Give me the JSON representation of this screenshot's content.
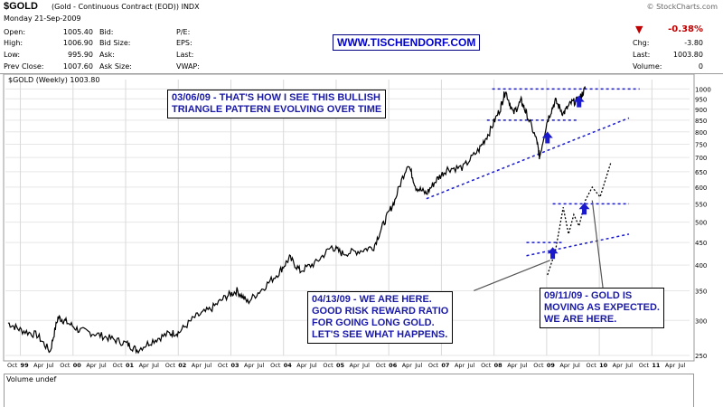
{
  "header": {
    "symbol": "$GOLD",
    "description": "(Gold - Continuous Contract (EOD)) INDX",
    "credit": "© StockCharts.com",
    "date": "Monday  21-Sep-2009",
    "url": "WWW.TISCHENDORF.COM",
    "quote": [
      {
        "label": "Open:",
        "value": "1005.40"
      },
      {
        "label": "High:",
        "value": "1006.90"
      },
      {
        "label": "Low:",
        "value": "995.90"
      },
      {
        "label": "Prev Close:",
        "value": "1007.60"
      }
    ],
    "quote2": [
      "Bid:",
      "Bid Size:",
      "Ask:",
      "Ask Size:"
    ],
    "quote3": [
      "P/E:",
      "EPS:",
      "Last:",
      "VWAP:"
    ],
    "change": {
      "pct": "-0.38%",
      "chg_label": "Chg:",
      "chg": "-3.80",
      "last_label": "Last:",
      "last": "1003.80",
      "vol_label": "Volume:",
      "vol": "0"
    },
    "arrow": "▼",
    "down_color": "#c00000"
  },
  "legend": "$GOLD (Weekly) 1003.80",
  "volume_label": "Volume undef",
  "annotations": [
    {
      "lines": [
        "03/06/09 - THAT'S HOW I SEE THIS BULLISH",
        "TRIANGLE PATTERN EVOLVING OVER TIME"
      ]
    },
    {
      "lines": [
        "04/13/09 - WE ARE HERE.",
        "GOOD RISK REWARD RATIO",
        "FOR GOING LONG GOLD.",
        "LET'S SEE WHAT HAPPENS."
      ]
    },
    {
      "lines": [
        "09/11/09 - GOLD IS",
        "MOVING AS EXPECTED.",
        "WE ARE HERE."
      ]
    }
  ],
  "chart_data": {
    "type": "line",
    "title": "$GOLD (Weekly) 1003.80",
    "y_scale": "log",
    "ylim": [
      250,
      1050
    ],
    "y_ticks": [
      1000,
      950,
      900,
      850,
      800,
      750,
      700,
      650,
      600,
      550,
      500,
      450,
      400,
      350,
      300,
      250
    ],
    "x_tick_labels": [
      "Oct",
      "99",
      "Apr",
      "Jul",
      "Oct",
      "00",
      "Apr",
      "Jul",
      "Oct",
      "01",
      "Apr",
      "Jul",
      "Oct",
      "02",
      "Apr",
      "Jul",
      "Oct",
      "03",
      "Apr",
      "Jul",
      "Oct",
      "04",
      "Apr",
      "Jul",
      "Oct",
      "05",
      "Apr",
      "Jul",
      "Oct",
      "06",
      "Apr",
      "Jul",
      "Oct",
      "07",
      "Apr",
      "Jul",
      "Oct",
      "08",
      "Apr",
      "Jul",
      "Oct",
      "09",
      "Apr",
      "Jul",
      "Oct",
      "10",
      "Apr",
      "Jul",
      "Oct",
      "11",
      "Apr",
      "Jul"
    ],
    "x_range": [
      1998.7,
      2011.7
    ],
    "series": [
      {
        "x": [
          1998.75,
          1999.0,
          1999.3,
          1999.55,
          1999.7,
          1999.85,
          2000.1,
          2000.4,
          2000.7,
          2001.0,
          2001.2,
          2001.5,
          2001.8,
          2002.0,
          2002.3,
          2002.6,
          2002.9,
          2003.1,
          2003.3,
          2003.6,
          2003.9,
          2004.1,
          2004.3,
          2004.6,
          2004.9,
          2005.1,
          2005.4,
          2005.7,
          2005.9,
          2006.1,
          2006.35,
          2006.5,
          2006.7,
          2006.9,
          2007.1,
          2007.4,
          2007.7,
          2007.9,
          2008.1,
          2008.2,
          2008.35,
          2008.5,
          2008.6,
          2008.8,
          2008.85,
          2009.0,
          2009.15,
          2009.3,
          2009.45,
          2009.6,
          2009.72
        ],
        "values": [
          296,
          285,
          278,
          255,
          305,
          298,
          285,
          280,
          273,
          266,
          257,
          270,
          280,
          282,
          305,
          318,
          340,
          350,
          330,
          355,
          385,
          415,
          388,
          405,
          440,
          425,
          430,
          440,
          500,
          560,
          680,
          600,
          580,
          625,
          660,
          665,
          730,
          800,
          900,
          990,
          880,
          940,
          880,
          760,
          700,
          850,
          940,
          880,
          930,
          945,
          1003
        ]
      }
    ],
    "projection": {
      "x": [
        2009.0,
        2009.15,
        2009.3,
        2009.4,
        2009.5,
        2009.6,
        2009.72,
        2009.85,
        2010.0,
        2010.2
      ],
      "values": [
        380,
        430,
        540,
        470,
        520,
        490,
        560,
        600,
        570,
        680
      ]
    }
  }
}
